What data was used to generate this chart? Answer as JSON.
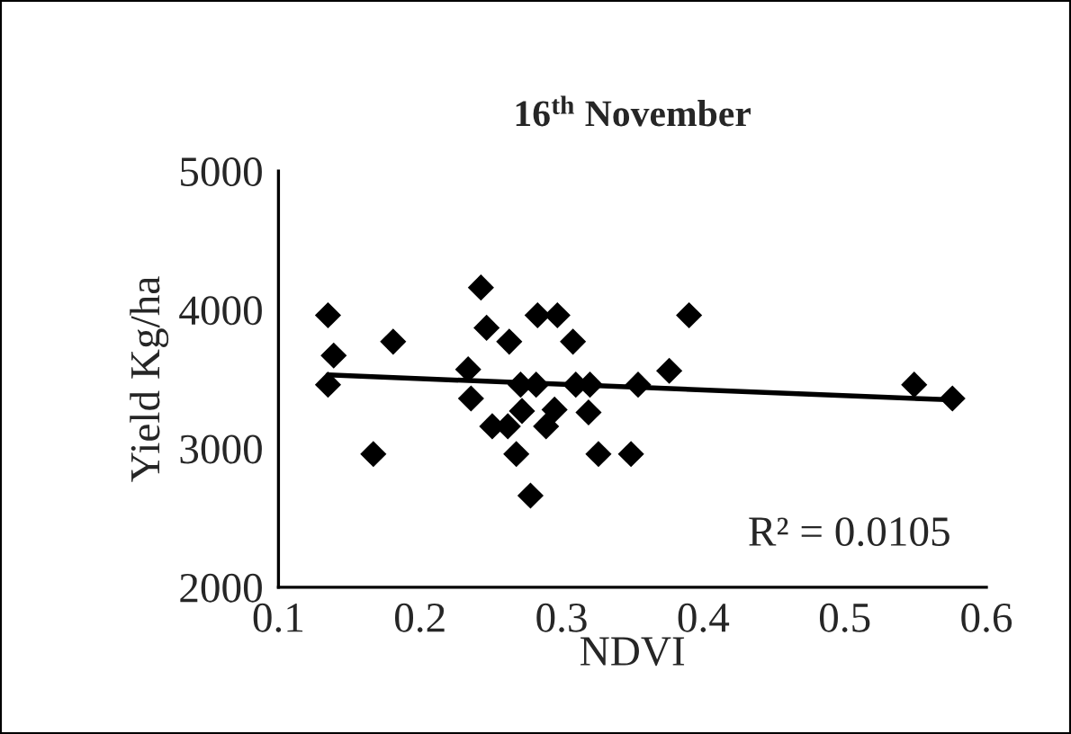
{
  "chart_data": {
    "type": "scatter",
    "title": "16$^{th}$ November",
    "xlabel": "NDVI",
    "ylabel": "Yield Kg/ha",
    "xlim": [
      0.1,
      0.6
    ],
    "xticks": [
      0.1,
      0.2,
      0.3,
      0.4,
      0.5,
      0.6
    ],
    "ylim": [
      2000,
      5000
    ],
    "yticks": [
      2000,
      3000,
      4000,
      5000
    ],
    "marker": "diamond",
    "grid": false,
    "legend": false,
    "series": [
      {
        "color": "#000000",
        "x": [
          0.135,
          0.139,
          0.135,
          0.181,
          0.167,
          0.243,
          0.247,
          0.263,
          0.234,
          0.236,
          0.271,
          0.282,
          0.283,
          0.297,
          0.308,
          0.31,
          0.32,
          0.354,
          0.376,
          0.39,
          0.272,
          0.251,
          0.262,
          0.295,
          0.289,
          0.319,
          0.268,
          0.326,
          0.349,
          0.278,
          0.549,
          0.576
        ],
        "values": [
          3960,
          3670,
          3460,
          3770,
          2960,
          4160,
          3870,
          3770,
          3570,
          3360,
          3460,
          3460,
          3960,
          3960,
          3770,
          3460,
          3460,
          3460,
          3560,
          3960,
          3270,
          3160,
          3160,
          3280,
          3160,
          3260,
          2960,
          2960,
          2960,
          2660,
          3460,
          3360
        ]
      },
      {
        "type": "line",
        "marker": "none",
        "color": "#000000",
        "x": [
          0.135,
          0.576
        ],
        "values": [
          3530,
          3350
        ]
      }
    ],
    "annotations": [
      "R² = 0.0105"
    ]
  }
}
